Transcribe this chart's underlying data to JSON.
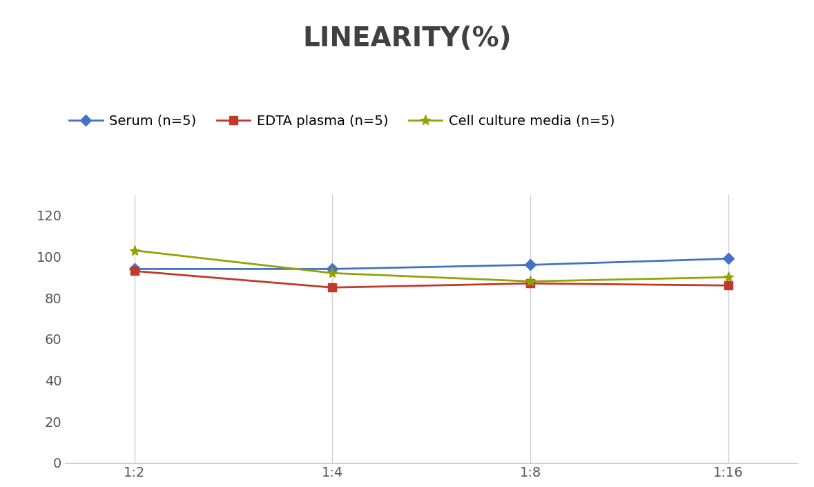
{
  "title": "LINEARITY(%)",
  "title_fontsize": 28,
  "title_fontweight": "bold",
  "title_color": "#404040",
  "x_labels": [
    "1:2",
    "1:4",
    "1:8",
    "1:16"
  ],
  "x_positions": [
    0,
    1,
    2,
    3
  ],
  "series": [
    {
      "label": "Serum (n=5)",
      "values": [
        94,
        94,
        96,
        99
      ],
      "color": "#4472C4",
      "marker": "D",
      "markersize": 8,
      "linewidth": 2
    },
    {
      "label": "EDTA plasma (n=5)",
      "values": [
        93,
        85,
        87,
        86
      ],
      "color": "#C0392B",
      "marker": "s",
      "markersize": 8,
      "linewidth": 2
    },
    {
      "label": "Cell culture media (n=5)",
      "values": [
        103,
        92,
        88,
        90
      ],
      "color": "#92A400",
      "marker": "*",
      "markersize": 11,
      "linewidth": 2
    }
  ],
  "ylim": [
    0,
    130
  ],
  "yticks": [
    0,
    20,
    40,
    60,
    80,
    100,
    120
  ],
  "background_color": "#ffffff",
  "grid_color": "#d0d0d0",
  "legend_fontsize": 14,
  "tick_fontsize": 14
}
